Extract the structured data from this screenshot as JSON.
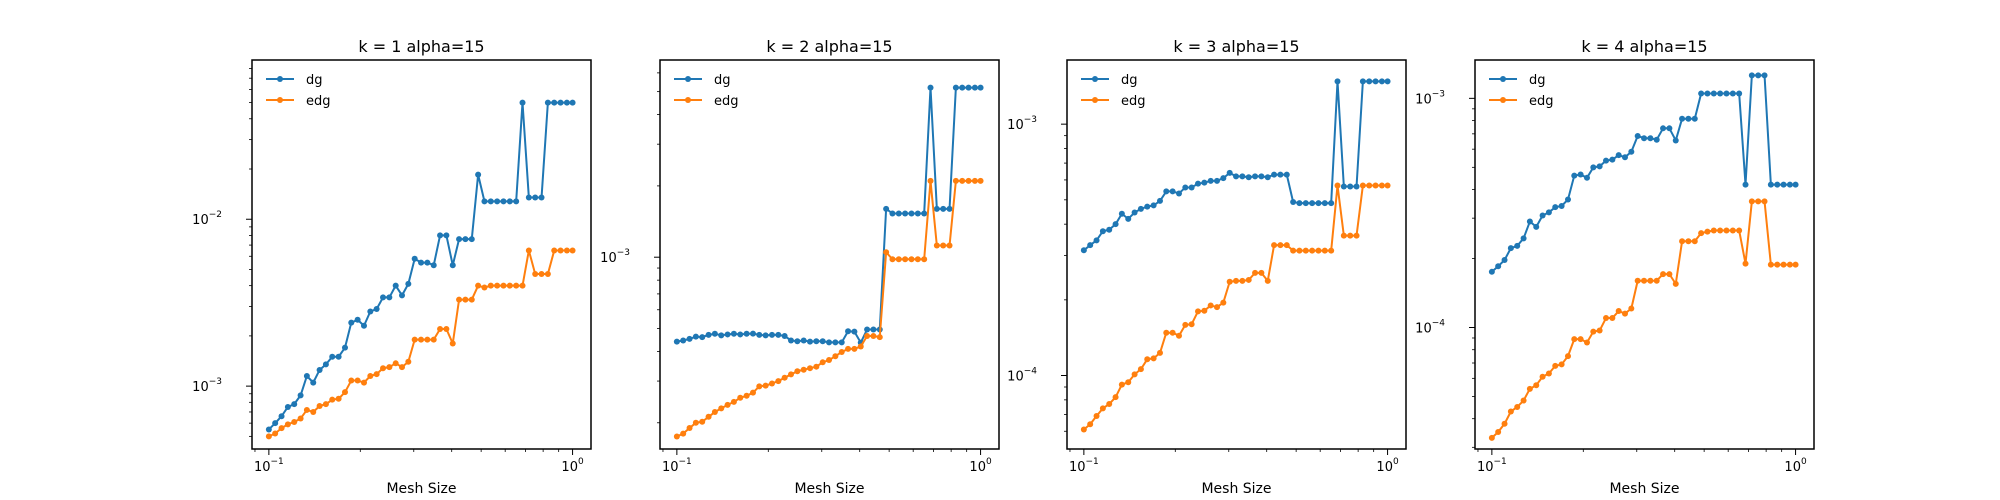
{
  "chart_data": [
    {
      "type": "line",
      "title": "k = 1 alpha=15",
      "xlabel": "Mesh Size",
      "ylabel": "",
      "xscale": "log",
      "yscale": "log",
      "xlim": [
        0.088,
        1.15
      ],
      "ylim": [
        0.00042,
        0.09
      ],
      "xticks": [
        {
          "value": 0.1,
          "base": "10",
          "exp": "−1"
        },
        {
          "value": 1,
          "base": "10",
          "exp": "0"
        }
      ],
      "yticks": [
        {
          "value": 0.001,
          "base": "10",
          "exp": "−3"
        },
        {
          "value": 0.01,
          "base": "10",
          "exp": "−2"
        }
      ],
      "grid": false,
      "legend": "upper-left",
      "x": [
        0.1,
        0.1049,
        0.1101,
        0.1155,
        0.1212,
        0.1272,
        0.1334,
        0.14,
        0.1469,
        0.1541,
        0.1617,
        0.1697,
        0.1781,
        0.1868,
        0.196,
        0.2057,
        0.2158,
        0.2264,
        0.2376,
        0.2493,
        0.2616,
        0.2744,
        0.2879,
        0.3021,
        0.317,
        0.3326,
        0.349,
        0.3662,
        0.3842,
        0.4032,
        0.423,
        0.4438,
        0.4657,
        0.4887,
        0.5127,
        0.538,
        0.5645,
        0.5923,
        0.6215,
        0.6521,
        0.6842,
        0.7179,
        0.7533,
        0.7904,
        0.8293,
        0.8702,
        0.9131,
        0.9581,
        1.0
      ],
      "series": [
        {
          "name": "dg",
          "color": "#1f77b4",
          "values": [
            0.00055,
            0.0006,
            0.00066,
            0.00075,
            0.00078,
            0.00088,
            0.00115,
            0.00105,
            0.00125,
            0.00135,
            0.0015,
            0.0015,
            0.0017,
            0.0024,
            0.0025,
            0.0023,
            0.0028,
            0.0029,
            0.0034,
            0.0034,
            0.004,
            0.0035,
            0.0041,
            0.0058,
            0.0055,
            0.0055,
            0.0053,
            0.008,
            0.008,
            0.0053,
            0.0076,
            0.0076,
            0.0076,
            0.0185,
            0.0128,
            0.0128,
            0.0128,
            0.0128,
            0.0128,
            0.0128,
            0.05,
            0.0135,
            0.0135,
            0.0135,
            0.05,
            0.05,
            0.05,
            0.05,
            0.05
          ]
        },
        {
          "name": "edg",
          "color": "#ff7f0e",
          "values": [
            0.0005,
            0.00052,
            0.00056,
            0.00059,
            0.00061,
            0.00064,
            0.00072,
            0.0007,
            0.00076,
            0.00078,
            0.00083,
            0.00084,
            0.00092,
            0.00108,
            0.00108,
            0.00105,
            0.00115,
            0.00118,
            0.00128,
            0.0013,
            0.00137,
            0.0013,
            0.0014,
            0.0019,
            0.0019,
            0.0019,
            0.0019,
            0.0022,
            0.0022,
            0.0018,
            0.0033,
            0.0033,
            0.0033,
            0.004,
            0.0039,
            0.004,
            0.004,
            0.004,
            0.004,
            0.004,
            0.004,
            0.0065,
            0.0047,
            0.0047,
            0.0047,
            0.0065,
            0.0065,
            0.0065,
            0.0065
          ]
        }
      ]
    },
    {
      "type": "line",
      "title": "k = 2 alpha=15",
      "xlabel": "Mesh Size",
      "ylabel": "",
      "xscale": "log",
      "yscale": "log",
      "xlim": [
        0.088,
        1.15
      ],
      "ylim": [
        0.000155,
        0.0068
      ],
      "xticks": [
        {
          "value": 0.1,
          "base": "10",
          "exp": "−1"
        },
        {
          "value": 1,
          "base": "10",
          "exp": "0"
        }
      ],
      "yticks": [
        {
          "value": 0.001,
          "base": "10",
          "exp": "−3"
        }
      ],
      "grid": false,
      "legend": "upper-left",
      "x": [
        0.1,
        0.1049,
        0.1101,
        0.1155,
        0.1212,
        0.1272,
        0.1334,
        0.14,
        0.1469,
        0.1541,
        0.1617,
        0.1697,
        0.1781,
        0.1868,
        0.196,
        0.2057,
        0.2158,
        0.2264,
        0.2376,
        0.2493,
        0.2616,
        0.2744,
        0.2879,
        0.3021,
        0.317,
        0.3326,
        0.349,
        0.3662,
        0.3842,
        0.4032,
        0.423,
        0.4438,
        0.4657,
        0.4887,
        0.5127,
        0.538,
        0.5645,
        0.5923,
        0.6215,
        0.6521,
        0.6842,
        0.7179,
        0.7533,
        0.7904,
        0.8293,
        0.8702,
        0.9131,
        0.9581,
        1.0
      ],
      "series": [
        {
          "name": "dg",
          "color": "#1f77b4",
          "values": [
            0.00044,
            0.000445,
            0.000452,
            0.000462,
            0.00046,
            0.00047,
            0.000475,
            0.000468,
            0.000472,
            0.000475,
            0.000472,
            0.000475,
            0.000476,
            0.00047,
            0.000468,
            0.00047,
            0.00047,
            0.000465,
            0.000445,
            0.000442,
            0.000445,
            0.00044,
            0.000442,
            0.000442,
            0.000437,
            0.000437,
            0.000437,
            0.000487,
            0.000485,
            0.000436,
            0.000495,
            0.000495,
            0.000495,
            0.0016,
            0.00153,
            0.00153,
            0.00153,
            0.00153,
            0.00153,
            0.00153,
            0.0052,
            0.0016,
            0.0016,
            0.0016,
            0.0052,
            0.0052,
            0.0052,
            0.0052,
            0.0052
          ]
        },
        {
          "name": "edg",
          "color": "#ff7f0e",
          "values": [
            0.000175,
            0.00018,
            0.00019,
            0.0002,
            0.000202,
            0.000212,
            0.000222,
            0.00023,
            0.000238,
            0.000245,
            0.000255,
            0.00026,
            0.000268,
            0.000285,
            0.000287,
            0.000293,
            0.0003,
            0.00031,
            0.00032,
            0.00033,
            0.000335,
            0.00034,
            0.000345,
            0.00036,
            0.000368,
            0.000382,
            0.000398,
            0.00041,
            0.00041,
            0.00042,
            0.000465,
            0.000465,
            0.00046,
            0.00105,
            0.00098,
            0.00098,
            0.00098,
            0.00098,
            0.00098,
            0.00098,
            0.0021,
            0.00112,
            0.00112,
            0.00112,
            0.0021,
            0.0021,
            0.0021,
            0.0021,
            0.0021
          ]
        }
      ]
    },
    {
      "type": "line",
      "title": "k = 3 alpha=15",
      "xlabel": "Mesh Size",
      "ylabel": "",
      "xscale": "log",
      "yscale": "log",
      "xlim": [
        0.088,
        1.15
      ],
      "ylim": [
        5.1e-05,
        0.0018
      ],
      "xticks": [
        {
          "value": 0.1,
          "base": "10",
          "exp": "−1"
        },
        {
          "value": 1,
          "base": "10",
          "exp": "0"
        }
      ],
      "yticks": [
        {
          "value": 0.0001,
          "base": "10",
          "exp": "−4"
        },
        {
          "value": 0.001,
          "base": "10",
          "exp": "−3"
        }
      ],
      "grid": false,
      "legend": "upper-left",
      "x": [
        0.1,
        0.1049,
        0.1101,
        0.1155,
        0.1212,
        0.1272,
        0.1334,
        0.14,
        0.1469,
        0.1541,
        0.1617,
        0.1697,
        0.1781,
        0.1868,
        0.196,
        0.2057,
        0.2158,
        0.2264,
        0.2376,
        0.2493,
        0.2616,
        0.2744,
        0.2879,
        0.3021,
        0.317,
        0.3326,
        0.349,
        0.3662,
        0.3842,
        0.4032,
        0.423,
        0.4438,
        0.4657,
        0.4887,
        0.5127,
        0.538,
        0.5645,
        0.5923,
        0.6215,
        0.6521,
        0.6842,
        0.7179,
        0.7533,
        0.7904,
        0.8293,
        0.8702,
        0.9131,
        0.9581,
        1.0
      ],
      "series": [
        {
          "name": "dg",
          "color": "#1f77b4",
          "values": [
            0.000315,
            0.00033,
            0.000345,
            0.000375,
            0.00038,
            0.0004,
            0.00044,
            0.00042,
            0.000445,
            0.00046,
            0.00047,
            0.000475,
            0.000495,
            0.00054,
            0.00054,
            0.00053,
            0.00056,
            0.00056,
            0.00058,
            0.000585,
            0.000595,
            0.000595,
            0.00061,
            0.00064,
            0.00062,
            0.00062,
            0.000615,
            0.00062,
            0.00062,
            0.000615,
            0.00063,
            0.00063,
            0.00063,
            0.00049,
            0.000485,
            0.000485,
            0.000485,
            0.000485,
            0.000485,
            0.000485,
            0.00148,
            0.000565,
            0.000565,
            0.000565,
            0.00148,
            0.00148,
            0.00148,
            0.00148,
            0.00148
          ]
        },
        {
          "name": "edg",
          "color": "#ff7f0e",
          "values": [
            6.1e-05,
            6.4e-05,
            6.9e-05,
            7.4e-05,
            7.7e-05,
            8.2e-05,
            9.2e-05,
            9.4e-05,
            0.000101,
            0.000106,
            0.000116,
            0.000117,
            0.000123,
            0.000148,
            0.000148,
            0.000144,
            0.000159,
            0.00016,
            0.00018,
            0.000181,
            0.00019,
            0.000187,
            0.000195,
            0.000236,
            0.000238,
            0.000238,
            0.00024,
            0.000256,
            0.000256,
            0.000238,
            0.00033,
            0.00033,
            0.00033,
            0.000314,
            0.000314,
            0.000314,
            0.000314,
            0.000314,
            0.000314,
            0.000314,
            0.00057,
            0.00036,
            0.00036,
            0.00036,
            0.00057,
            0.00057,
            0.00057,
            0.00057,
            0.00057
          ]
        }
      ]
    },
    {
      "type": "line",
      "title": "k = 4 alpha=15",
      "xlabel": "Mesh Size",
      "ylabel": "",
      "xscale": "log",
      "yscale": "log",
      "xlim": [
        0.088,
        1.15
      ],
      "ylim": [
        2.95e-05,
        0.00147
      ],
      "xticks": [
        {
          "value": 0.1,
          "base": "10",
          "exp": "−1"
        },
        {
          "value": 1,
          "base": "10",
          "exp": "0"
        }
      ],
      "yticks": [
        {
          "value": 0.0001,
          "base": "10",
          "exp": "−4"
        },
        {
          "value": 0.001,
          "base": "10",
          "exp": "−3"
        }
      ],
      "grid": false,
      "legend": "upper-left",
      "x": [
        0.1,
        0.1049,
        0.1101,
        0.1155,
        0.1212,
        0.1272,
        0.1334,
        0.14,
        0.1469,
        0.1541,
        0.1617,
        0.1697,
        0.1781,
        0.1868,
        0.196,
        0.2057,
        0.2158,
        0.2264,
        0.2376,
        0.2493,
        0.2616,
        0.2744,
        0.2879,
        0.3021,
        0.317,
        0.3326,
        0.349,
        0.3662,
        0.3842,
        0.4032,
        0.423,
        0.4438,
        0.4657,
        0.4887,
        0.5127,
        0.538,
        0.5645,
        0.5923,
        0.6215,
        0.6521,
        0.6842,
        0.7179,
        0.7533,
        0.7904,
        0.8293,
        0.8702,
        0.9131,
        0.9581,
        1.0
      ],
      "series": [
        {
          "name": "dg",
          "color": "#1f77b4",
          "values": [
            0.000175,
            0.000185,
            0.000197,
            0.000222,
            0.000227,
            0.000245,
            0.00029,
            0.000275,
            0.000308,
            0.000318,
            0.000335,
            0.000339,
            0.000362,
            0.00046,
            0.000465,
            0.00045,
            0.0005,
            0.000505,
            0.000535,
            0.00054,
            0.000565,
            0.000553,
            0.000585,
            0.000685,
            0.00067,
            0.00067,
            0.00066,
            0.00074,
            0.00074,
            0.000655,
            0.000815,
            0.000815,
            0.000815,
            0.00105,
            0.00105,
            0.00105,
            0.00105,
            0.00105,
            0.00105,
            0.00105,
            0.00042,
            0.00126,
            0.00126,
            0.00126,
            0.00042,
            0.00042,
            0.00042,
            0.00042,
            0.00042
          ]
        },
        {
          "name": "edg",
          "color": "#ff7f0e",
          "values": [
            3.3e-05,
            3.5e-05,
            3.8e-05,
            4.3e-05,
            4.5e-05,
            4.8e-05,
            5.4e-05,
            5.6e-05,
            6.1e-05,
            6.3e-05,
            6.8e-05,
            6.9e-05,
            7.5e-05,
            8.9e-05,
            8.9e-05,
            8.6e-05,
            9.6e-05,
            9.7e-05,
            0.00011,
            0.00011,
            0.000118,
            0.000115,
            0.000121,
            0.00016,
            0.00016,
            0.00016,
            0.00016,
            0.000171,
            0.000171,
            0.000155,
            0.000238,
            0.000238,
            0.000238,
            0.000258,
            0.000262,
            0.000265,
            0.000265,
            0.000265,
            0.000265,
            0.000265,
            0.00019,
            0.000355,
            0.000355,
            0.000355,
            0.000188,
            0.000188,
            0.000188,
            0.000188,
            0.000188
          ]
        }
      ]
    }
  ]
}
